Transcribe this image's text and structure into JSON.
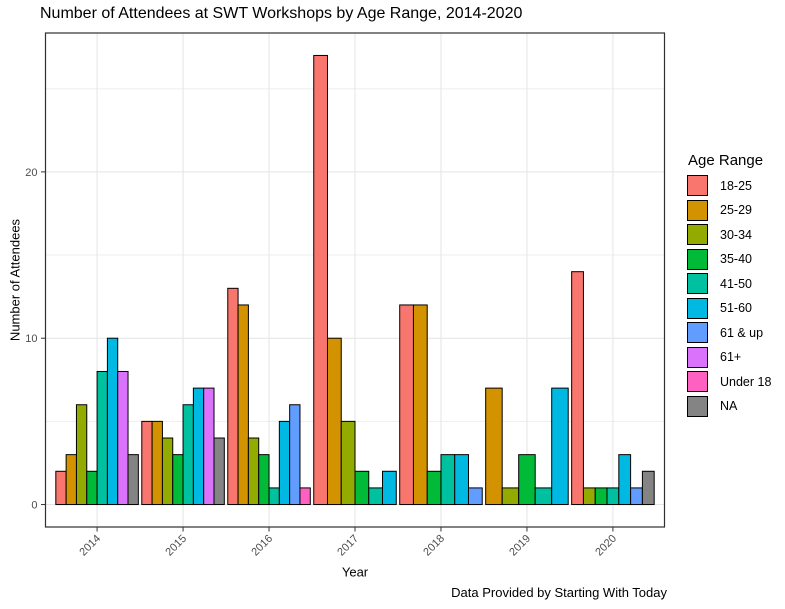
{
  "chart_data": {
    "type": "bar",
    "title": "Number of Attendees at SWT Workshops by Age Range, 2014-2020",
    "xlabel": "Year",
    "ylabel": "Number of Attendees",
    "caption": "Data Provided by Starting With Today",
    "legend_title": "Age Range",
    "legend_position": "right",
    "grid": true,
    "categories": [
      "2014",
      "2015",
      "2016",
      "2017",
      "2018",
      "2019",
      "2020"
    ],
    "y_ticks": [
      0,
      10,
      20
    ],
    "y_minor_gridlines": [
      5,
      15,
      25
    ],
    "ylim": [
      0,
      28.35
    ],
    "series": [
      {
        "name": "18-25",
        "color": "#F8766D",
        "values": [
          2,
          5,
          13,
          27,
          12,
          null,
          14
        ]
      },
      {
        "name": "25-29",
        "color": "#D39200",
        "values": [
          3,
          5,
          12,
          10,
          12,
          7,
          null
        ]
      },
      {
        "name": "30-34",
        "color": "#93AA00",
        "values": [
          6,
          4,
          4,
          5,
          null,
          1,
          1
        ]
      },
      {
        "name": "35-40",
        "color": "#00BA38",
        "values": [
          2,
          3,
          3,
          2,
          2,
          3,
          1
        ]
      },
      {
        "name": "41-50",
        "color": "#00C19F",
        "values": [
          8,
          6,
          1,
          1,
          3,
          1,
          1
        ]
      },
      {
        "name": "51-60",
        "color": "#00B9E3",
        "values": [
          10,
          7,
          5,
          2,
          3,
          7,
          3
        ]
      },
      {
        "name": "61 & up",
        "color": "#619CFF",
        "values": [
          null,
          null,
          6,
          null,
          1,
          null,
          1
        ]
      },
      {
        "name": "61+",
        "color": "#DB72FB",
        "values": [
          8,
          7,
          null,
          null,
          null,
          null,
          null
        ]
      },
      {
        "name": "Under 18",
        "color": "#FF61C3",
        "values": [
          null,
          null,
          1,
          null,
          null,
          null,
          null
        ]
      },
      {
        "name": "NA",
        "color": "#848484",
        "values": [
          3,
          4,
          null,
          null,
          null,
          null,
          2
        ]
      }
    ]
  },
  "colors": {
    "background": "#FFFFFF",
    "bar_stroke": "#000000",
    "grid_major": "#E4E4E4",
    "grid_minor": "#EEEEEE",
    "panel_border": "#2F2F2F",
    "tick_mark": "#333333",
    "tick_label": "#4D4D4D",
    "text": "#000000"
  }
}
